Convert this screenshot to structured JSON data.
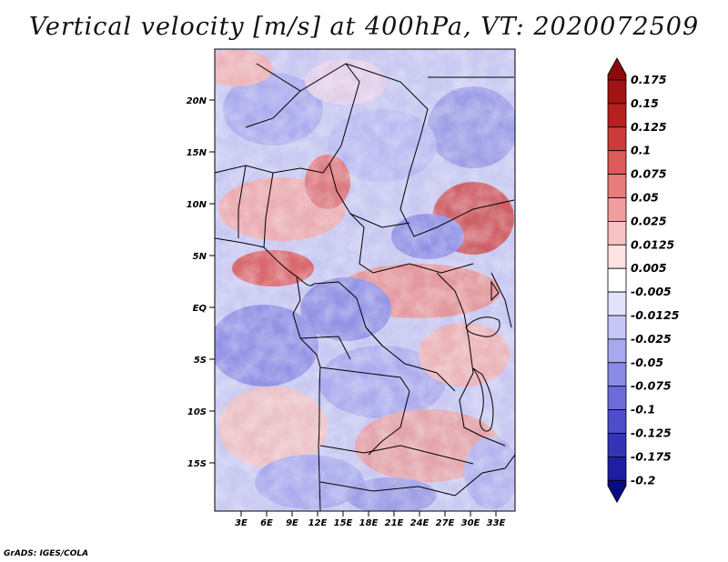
{
  "title": "Vertical velocity [m/s] at 400hPa, VT: 2020072509",
  "credit": "GrADS: IGES/COLA",
  "map": {
    "lat_ticks": [
      "20N",
      "15N",
      "10N",
      "5N",
      "EQ",
      "5S",
      "10S",
      "15S"
    ],
    "lon_ticks": [
      "3E",
      "6E",
      "9E",
      "12E",
      "15E",
      "18E",
      "21E",
      "24E",
      "27E",
      "30E",
      "33E"
    ]
  },
  "colorbar": {
    "levels": [
      "0.175",
      "0.15",
      "0.125",
      "0.1",
      "0.075",
      "0.05",
      "0.025",
      "0.0125",
      "0.005",
      "-0.005",
      "-0.0125",
      "-0.025",
      "-0.05",
      "-0.075",
      "-0.1",
      "-0.125",
      "-0.175",
      "-0.2"
    ],
    "colors": [
      "#8b0a0a",
      "#a01414",
      "#b82020",
      "#cc3a3a",
      "#dc5a5a",
      "#e67c7c",
      "#f09e9e",
      "#f7c2c2",
      "#fde2e2",
      "#ffffff",
      "#e2e2fd",
      "#c6c6f6",
      "#a8a8ee",
      "#8a8ae4",
      "#6c6cd8",
      "#4e4ec8",
      "#3434b4",
      "#1e1ea0",
      "#0a0a82"
    ]
  }
}
